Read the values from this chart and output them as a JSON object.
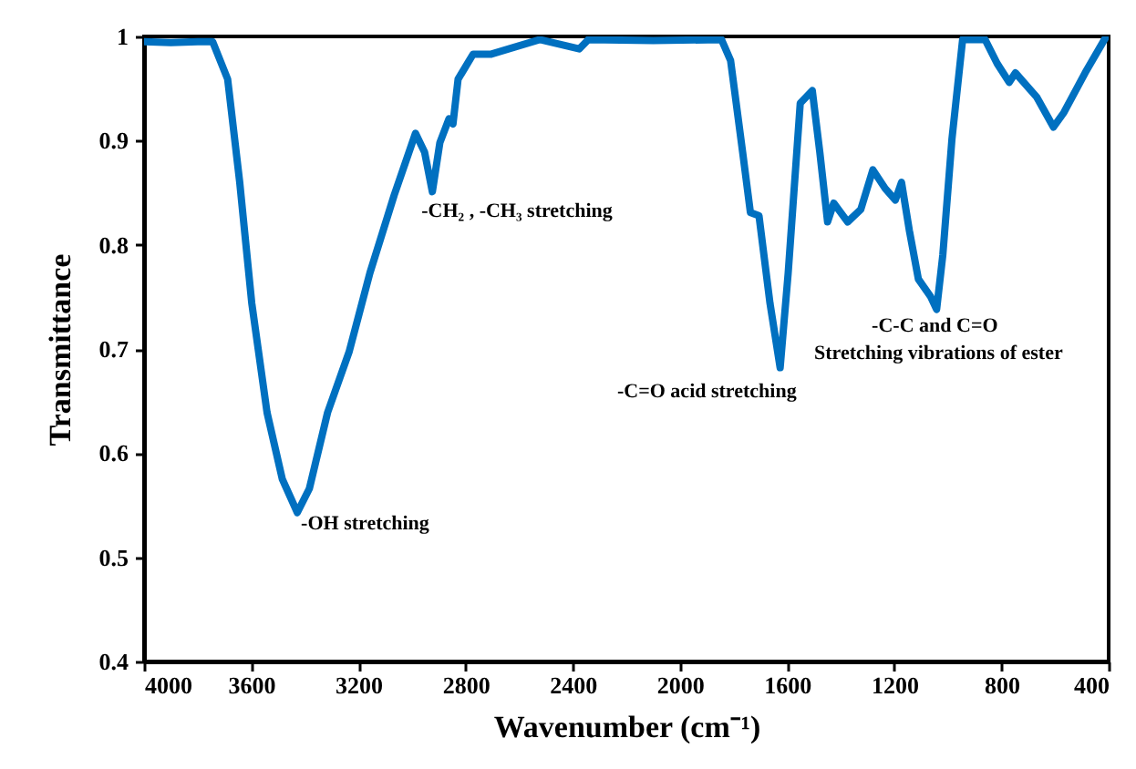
{
  "chart_data": {
    "type": "line",
    "xlabel": "Wavenumber (cm⁻¹)",
    "ylabel": "Transmittance",
    "xlim": [
      4000,
      400
    ],
    "ylim": [
      0.4,
      1
    ],
    "xticks": [
      4000,
      3600,
      3200,
      2800,
      2400,
      2000,
      1600,
      1200,
      800,
      400
    ],
    "yticks": [
      0.4,
      0.5,
      0.6,
      0.7,
      0.8,
      0.9,
      1
    ],
    "x": [
      4000,
      3900,
      3800,
      3744,
      3688,
      3643,
      3598,
      3541,
      3484,
      3428,
      3383,
      3315,
      3235,
      3157,
      3066,
      2987,
      2953,
      2924,
      2896,
      2862,
      2847,
      2828,
      2772,
      2704,
      2523,
      2376,
      2342,
      2100,
      1845,
      1811,
      1766,
      1737,
      1705,
      1664,
      1626,
      1596,
      1551,
      1506,
      1478,
      1449,
      1426,
      1374,
      1325,
      1280,
      1234,
      1196,
      1173,
      1144,
      1110,
      1064,
      1042,
      1019,
      985,
      945,
      861,
      816,
      771,
      748,
      669,
      606,
      567,
      488,
      409
    ],
    "color": "#0070c0",
    "values": [
      0.995,
      0.994,
      0.995,
      0.995,
      0.959,
      0.86,
      0.744,
      0.639,
      0.575,
      0.543,
      0.566,
      0.639,
      0.697,
      0.773,
      0.848,
      0.907,
      0.889,
      0.851,
      0.898,
      0.921,
      0.916,
      0.959,
      0.983,
      0.983,
      0.997,
      0.988,
      0.997,
      0.996,
      0.997,
      0.977,
      0.889,
      0.831,
      0.828,
      0.744,
      0.682,
      0.773,
      0.936,
      0.948,
      0.889,
      0.822,
      0.84,
      0.822,
      0.834,
      0.872,
      0.854,
      0.843,
      0.86,
      0.814,
      0.767,
      0.75,
      0.738,
      0.79,
      0.901,
      0.997,
      0.997,
      0.974,
      0.956,
      0.965,
      0.942,
      0.913,
      0.927,
      0.965,
      1.0
    ],
    "annotations": [
      {
        "text": "-OH stretching",
        "x": 3428,
        "y": 0.543
      },
      {
        "text": "-CH₂ , -CH₃  stretching",
        "x": 2924,
        "y": 0.851
      },
      {
        "text": "-C=O acid stretching",
        "x": 1626,
        "y": 0.682
      },
      {
        "text": "-C-C and C=O",
        "x": 1042,
        "y": 0.738
      },
      {
        "text": "Stretching vibrations  of ester",
        "x": 1042,
        "y": 0.738
      }
    ]
  }
}
